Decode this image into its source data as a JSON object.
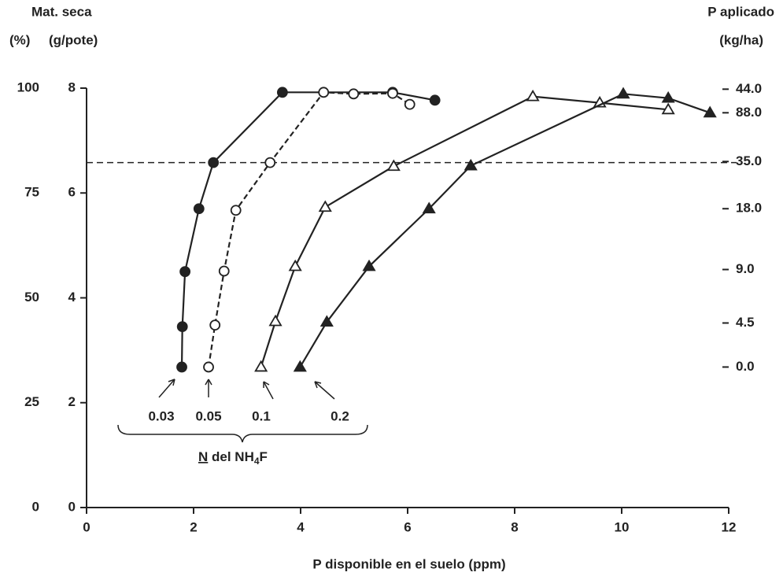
{
  "chart_data": {
    "type": "line",
    "ylabel_top": "Mat. seca",
    "ylabel_pct": "(%)",
    "ylabel": "(g/pote)",
    "y3label_top": "P aplicado",
    "y3label": "(kg/ha)",
    "xlabel": "P disponible en el suelo (ppm)",
    "xlim": [
      0,
      12
    ],
    "xticks": [
      0,
      2,
      4,
      6,
      8,
      10,
      12
    ],
    "ylim": [
      0,
      8
    ],
    "yticks": [
      0,
      2,
      4,
      6,
      8
    ],
    "y2lim": [
      0,
      100
    ],
    "y2ticks": [
      0,
      25,
      50,
      75,
      100
    ],
    "right_ticks": [
      {
        "value": 7.98,
        "label": "44.0"
      },
      {
        "value": 7.53,
        "label": "88.0"
      },
      {
        "value": 6.6,
        "label": "35.0"
      },
      {
        "value": 5.7,
        "label": "18.0"
      },
      {
        "value": 4.54,
        "label": "9.0"
      },
      {
        "value": 3.52,
        "label": "4.5"
      },
      {
        "value": 2.68,
        "label": "0.0"
      }
    ],
    "hline": 6.58,
    "grid": false,
    "series": [
      {
        "name": "0.03",
        "color": "#222222",
        "marker": "circle",
        "filled": true,
        "dashed": false,
        "x": [
          1.78,
          1.79,
          1.84,
          2.1,
          2.37,
          3.66,
          5.72,
          6.51
        ],
        "values": [
          2.68,
          3.45,
          4.5,
          5.7,
          6.58,
          7.92,
          7.92,
          7.77
        ]
      },
      {
        "name": "0.05",
        "color": "#222222",
        "marker": "circle",
        "filled": false,
        "dashed": true,
        "x": [
          2.28,
          2.4,
          2.57,
          2.79,
          3.43,
          4.43,
          4.99,
          5.72,
          6.04
        ],
        "values": [
          2.68,
          3.48,
          4.51,
          5.67,
          6.58,
          7.92,
          7.89,
          7.9,
          7.69
        ]
      },
      {
        "name": "0.1",
        "color": "#222222",
        "marker": "triangle",
        "filled": false,
        "dashed": false,
        "x": [
          3.26,
          3.53,
          3.9,
          4.46,
          5.74,
          8.34,
          9.59,
          10.87
        ],
        "values": [
          2.68,
          3.55,
          4.6,
          5.73,
          6.51,
          7.84,
          7.72,
          7.59
        ]
      },
      {
        "name": "0.2",
        "color": "#222222",
        "marker": "triangle",
        "filled": true,
        "dashed": false,
        "x": [
          3.99,
          4.49,
          5.28,
          6.4,
          7.18,
          10.03,
          10.87,
          11.65
        ],
        "values": [
          2.68,
          3.54,
          4.6,
          5.7,
          6.52,
          7.89,
          7.81,
          7.53
        ]
      }
    ],
    "annotation": {
      "underlined": "N",
      "text": "del NH",
      "subscript": "4",
      "suffix": "F"
    }
  }
}
